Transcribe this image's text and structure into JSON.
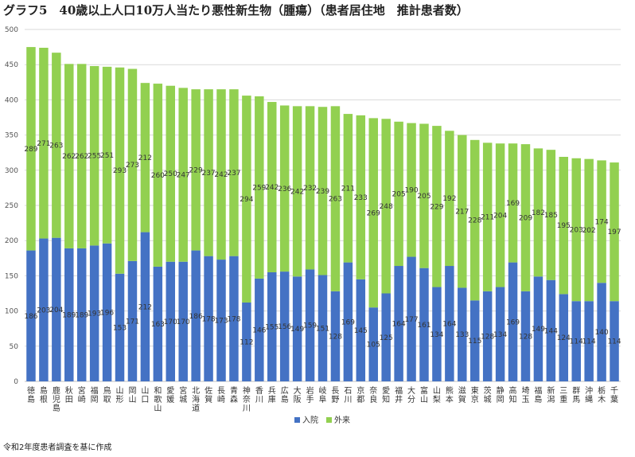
{
  "title": "グラフ5　40歳以上人口10万人当たり悪性新生物（腫瘍）（患者居住地　推計患者数）",
  "footnote": "令和2年度患者調査を基に作成",
  "colors": {
    "inpatient": "#4472C4",
    "outpatient": "#92D050",
    "grid": "#D9D9D9",
    "axis": "#BFBFBF"
  },
  "chart_data": {
    "type": "bar",
    "stacked": true,
    "title": "グラフ5　40歳以上人口10万人当たり悪性新生物（腫瘍）（患者居住地　推計患者数）",
    "xlabel": "",
    "ylabel": "",
    "ylim": [
      0,
      500
    ],
    "yticks": [
      0,
      50,
      100,
      150,
      200,
      250,
      300,
      350,
      400,
      450,
      500
    ],
    "grid": true,
    "legend_position": "bottom",
    "categories": [
      "徳島",
      "島根",
      "鹿児島",
      "秋田",
      "宮崎",
      "福岡",
      "鳥取",
      "山形",
      "岡山",
      "山口",
      "和歌山",
      "愛媛",
      "宮城",
      "北海道",
      "佐賀",
      "長崎",
      "青森",
      "神奈川",
      "香川",
      "兵庫",
      "広島",
      "大阪",
      "岩手",
      "岐阜",
      "長野",
      "石川",
      "京都",
      "奈良",
      "愛知",
      "福井",
      "大分",
      "富山",
      "山梨",
      "熊本",
      "滋賀",
      "東京",
      "茨城",
      "静岡",
      "高知",
      "埼玉",
      "福島",
      "新潟",
      "三重",
      "群馬",
      "沖縄",
      "栃木",
      "千葉"
    ],
    "series": [
      {
        "name": "入院",
        "values": [
          186,
          203,
          204,
          189,
          189,
          193,
          196,
          153,
          171,
          212,
          163,
          170,
          170,
          186,
          178,
          173,
          178,
          112,
          146,
          155,
          156,
          149,
          159,
          151,
          128,
          169,
          145,
          105,
          125,
          164,
          177,
          161,
          134,
          164,
          133,
          115,
          128,
          134,
          169,
          128,
          149,
          144,
          124,
          114,
          114,
          140,
          114
        ]
      },
      {
        "name": "外来",
        "values": [
          289,
          271,
          263,
          262,
          262,
          255,
          251,
          293,
          273,
          212,
          260,
          250,
          247,
          229,
          237,
          242,
          237,
          294,
          259,
          242,
          236,
          242,
          232,
          239,
          263,
          211,
          233,
          269,
          248,
          205,
          190,
          205,
          229,
          192,
          217,
          228,
          211,
          204,
          169,
          209,
          182,
          185,
          195,
          203,
          202,
          174,
          197
        ]
      }
    ]
  }
}
